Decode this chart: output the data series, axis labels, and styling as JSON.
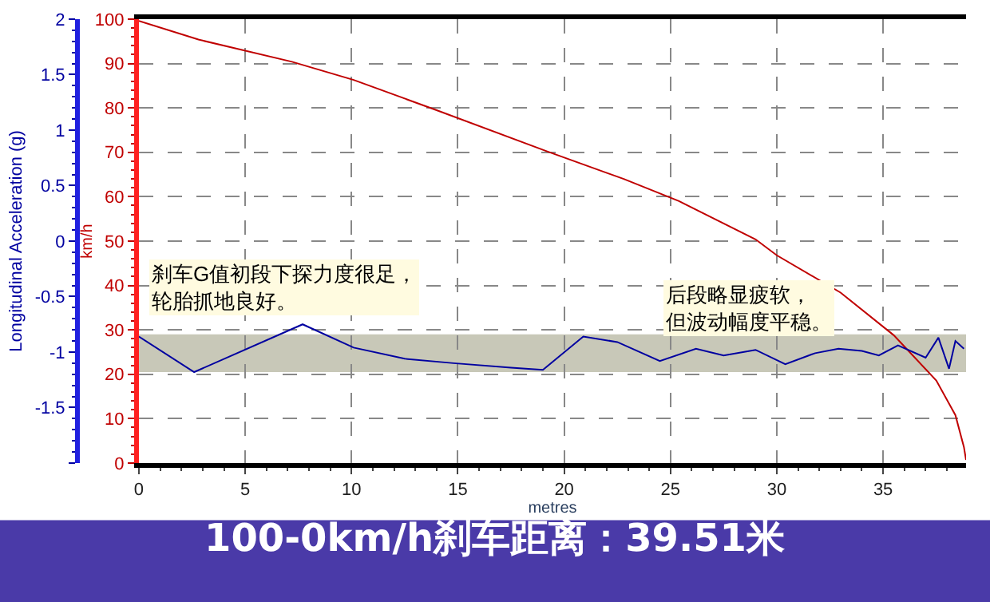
{
  "chart_data": {
    "type": "line",
    "title": "100-0km/h刹车距离：39.51米",
    "xlabel": "metres",
    "ylabel": "km/h",
    "y2label": "Longitudinal Acceleration (g)",
    "annotations": [
      "刹车G值初段下探力度很足，轮胎抓地良好。",
      "后段略显疲软，但波动幅度平稳。"
    ],
    "series": [
      {
        "color": "#c00000",
        "axis": "y",
        "x": [
          0,
          2.8,
          7.2,
          10.1,
          14.0,
          19.2,
          22.8,
          25.4,
          29.0,
          30.0,
          33.0,
          35.5,
          37.5,
          38.4,
          38.8,
          38.9
        ],
        "values": [
          99.6,
          95.4,
          90.4,
          86.3,
          79.5,
          70.2,
          64,
          59,
          50.4,
          46.8,
          38.4,
          28.8,
          18.6,
          10.8,
          3.6,
          0.7
        ]
      },
      {
        "color": "#0000a0",
        "axis": "y2",
        "x": [
          0,
          2.6,
          7.7,
          10.1,
          12.5,
          14.8,
          17.5,
          19.0,
          20.9,
          22.5,
          24.5,
          26.2,
          27.5,
          29.0,
          30.4,
          31.8,
          32.9,
          34.0,
          34.8,
          35.7,
          37.0,
          37.6,
          38.1,
          38.4,
          38.8
        ],
        "values": [
          -0.86,
          -1.18,
          -0.75,
          -0.96,
          -1.06,
          -1.1,
          -1.14,
          -1.16,
          -0.86,
          -0.91,
          -1.08,
          -0.97,
          -1.03,
          -0.98,
          -1.11,
          -1.01,
          -0.97,
          -0.99,
          -1.03,
          -0.94,
          -1.05,
          -0.87,
          -1.15,
          -0.9,
          -0.97
        ]
      }
    ],
    "bands": [
      {
        "axis": "y",
        "from": 20.5,
        "to": 29,
        "color": "#c8c8b8"
      }
    ],
    "xlim": [
      0,
      38.9
    ],
    "xticks": [
      0,
      5,
      10,
      15,
      20,
      25,
      30,
      35
    ],
    "ylim": [
      0,
      100
    ],
    "yticks": [
      0,
      10,
      20,
      30,
      40,
      50,
      60,
      70,
      80,
      90,
      100
    ],
    "y2lim": [
      -2,
      2
    ],
    "y2ticks": [
      {
        "value": -2,
        "label": null
      },
      -1.5,
      -1,
      -0.5,
      0,
      0.5,
      1,
      1.5,
      2
    ],
    "grid": true,
    "marker": "none",
    "line_style": "solid"
  }
}
